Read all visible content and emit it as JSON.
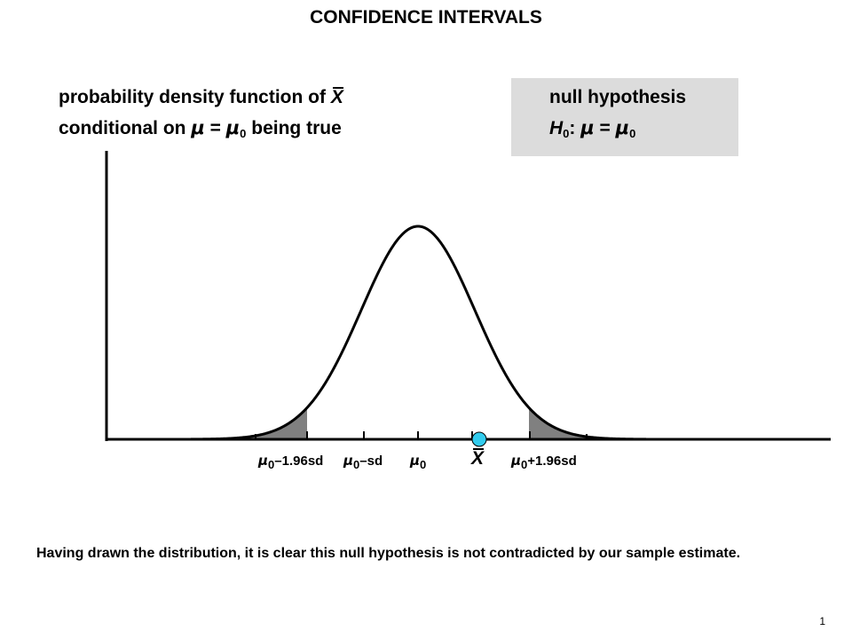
{
  "title": "CONFIDENCE INTERVALS",
  "pdf_label": {
    "line1_prefix": "probability density function of ",
    "line1_var": "X",
    "line2_prefix": "conditional on ",
    "line2_mu": "μ",
    "line2_eq": " = ",
    "line2_mu0": "μ",
    "line2_sub": "0",
    "line2_suffix": " being true"
  },
  "null_box": {
    "title": "null hypothesis",
    "h": "H",
    "h_sub": "0",
    "colon": ": ",
    "mu": "μ",
    "eq": " = ",
    "mu0": "μ",
    "mu0_sub": "0"
  },
  "ticks": {
    "m196": {
      "mu": "μ",
      "sub": "0",
      "text": "–1.96sd"
    },
    "msd": {
      "mu": "μ",
      "sub": "0",
      "text": "–sd"
    },
    "m0": {
      "mu": "μ",
      "sub": "0"
    },
    "p196": {
      "mu": "μ",
      "sub": "0",
      "text": "+1.96sd"
    },
    "xbar": "X"
  },
  "caption": "Having drawn the distribution, it is clear this null hypothesis is not contradicted by our sample estimate.",
  "slide_number": "1",
  "colors": {
    "box_bg": "#dcdcdc",
    "tail_fill": "#808080",
    "sample_point": "#33ccee"
  }
}
